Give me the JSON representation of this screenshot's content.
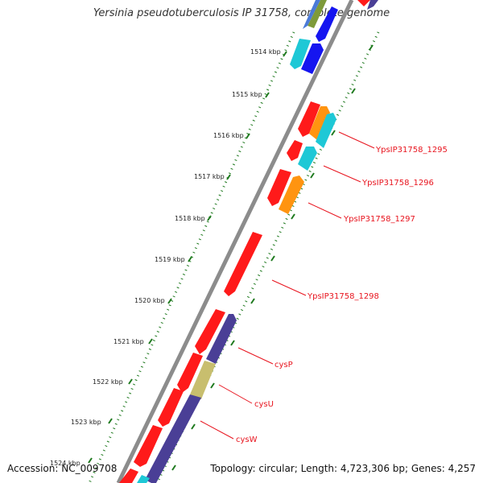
{
  "title": "Yersinia pseudotuberculosis IP 31758, complete genome",
  "footer": {
    "accession": "Accession: NC_009708",
    "summary": "Topology: circular; Length: 4,723,306 bp; Genes: 4,257"
  },
  "kbp_ticks": [
    "1514 kbp",
    "1515 kbp",
    "1516 kbp",
    "1517 kbp",
    "1518 kbp",
    "1519 kbp",
    "1520 kbp",
    "1521 kbp",
    "1522 kbp",
    "1523 kbp",
    "1524 kbp"
  ],
  "gene_labels": [
    "YpsIP31758_1295",
    "YpsIP31758_1296",
    "YpsIP31758_1297",
    "YpsIP31758_1298",
    "cysP",
    "cysU",
    "cysW"
  ],
  "colors": {
    "forward_cds": "#ff1a1a",
    "reverse_cds_navy": "#4a3f96",
    "reverse_cds_blue": "#1515f0",
    "cyan": "#1ec8d6",
    "orange": "#ff9410",
    "khaki": "#c8be6e",
    "backbone": "#8c8c8c",
    "ticks": "#1f7a1f",
    "labels": "#e8141e"
  }
}
